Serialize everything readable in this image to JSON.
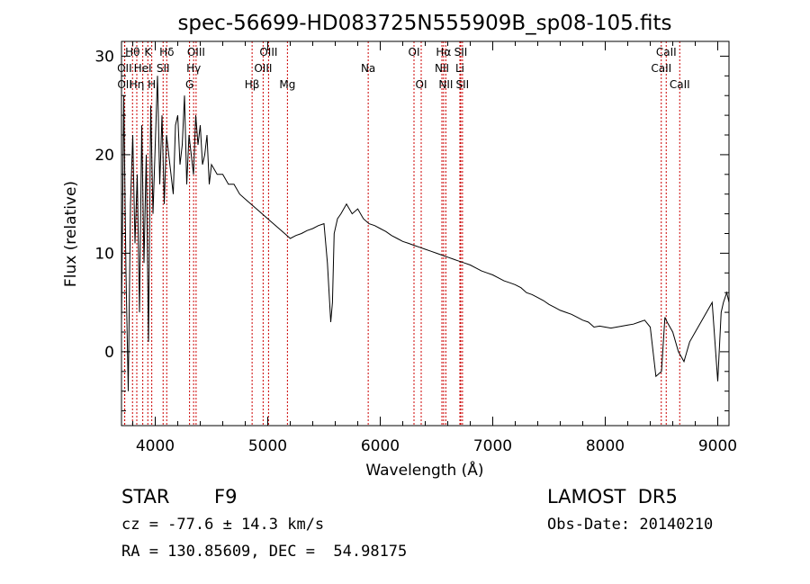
{
  "chart_data": {
    "type": "line",
    "title": "spec-56699-HD083725N555909B_sp08-105.fits",
    "xlabel": "Wavelength (Å)",
    "ylabel": "Flux (relative)",
    "xlim": [
      3700,
      9100
    ],
    "ylim": [
      -7.5,
      31.5
    ],
    "xticks": [
      4000,
      5000,
      6000,
      7000,
      8000,
      9000
    ],
    "yticks": [
      0,
      10,
      20,
      30
    ],
    "grid": false,
    "series": [
      {
        "x": [
          3700,
          3720,
          3740,
          3760,
          3780,
          3800,
          3820,
          3840,
          3860,
          3880,
          3900,
          3920,
          3940,
          3960,
          3980,
          4000,
          4020,
          4040,
          4060,
          4080,
          4100,
          4120,
          4140,
          4160,
          4180,
          4200,
          4220,
          4240,
          4260,
          4280,
          4300,
          4320,
          4340,
          4360,
          4380,
          4400,
          4420,
          4440,
          4460,
          4480,
          4500,
          4550,
          4600,
          4650,
          4700,
          4750,
          4800,
          4850,
          4900,
          4950,
          5000,
          5050,
          5100,
          5150,
          5200,
          5250,
          5300,
          5350,
          5400,
          5450,
          5500,
          5530,
          5560,
          5575,
          5590,
          5620,
          5650,
          5700,
          5750,
          5800,
          5850,
          5900,
          5950,
          6000,
          6050,
          6100,
          6150,
          6200,
          6250,
          6300,
          6350,
          6400,
          6450,
          6500,
          6550,
          6600,
          6650,
          6700,
          6750,
          6800,
          6850,
          6900,
          6950,
          7000,
          7050,
          7100,
          7150,
          7200,
          7250,
          7300,
          7350,
          7400,
          7450,
          7500,
          7550,
          7600,
          7650,
          7700,
          7750,
          7800,
          7850,
          7900,
          7950,
          8000,
          8050,
          8100,
          8150,
          8200,
          8250,
          8300,
          8350,
          8400,
          8450,
          8500,
          8530,
          8550,
          8600,
          8650,
          8700,
          8750,
          8800,
          8850,
          8900,
          8950,
          9000,
          9030,
          9050,
          9080,
          9100
        ],
        "values": [
          3,
          26,
          8,
          -4,
          15,
          22,
          11,
          18,
          4,
          23,
          9,
          20,
          1,
          25,
          14,
          21,
          28,
          17,
          24,
          15,
          22,
          20,
          18,
          16,
          23,
          24,
          19,
          21,
          26,
          17,
          22,
          20,
          18,
          24,
          21,
          23,
          19,
          20,
          22,
          17,
          19,
          18,
          18,
          17,
          17,
          16,
          15.5,
          15,
          14.5,
          14,
          13.5,
          13,
          12.5,
          12,
          11.5,
          11.8,
          12,
          12.3,
          12.5,
          12.8,
          13,
          9,
          3,
          5,
          12,
          13.5,
          14,
          15,
          14,
          14.5,
          13.5,
          13,
          12.8,
          12.5,
          12.2,
          11.8,
          11.5,
          11.2,
          11,
          10.8,
          10.6,
          10.4,
          10.2,
          10,
          9.8,
          9.6,
          9.4,
          9.2,
          9,
          8.8,
          8.5,
          8.2,
          8,
          7.8,
          7.5,
          7.2,
          7,
          6.8,
          6.5,
          6,
          5.8,
          5.5,
          5.2,
          4.8,
          4.5,
          4.2,
          4,
          3.8,
          3.5,
          3.2,
          3,
          2.5,
          2.6,
          2.5,
          2.4,
          2.5,
          2.6,
          2.7,
          2.8,
          3,
          3.2,
          2.5,
          -2.5,
          -2,
          3.5,
          3,
          2,
          0,
          -1,
          1,
          2,
          3,
          4,
          5,
          -3,
          4,
          5,
          6,
          5
        ]
      }
    ],
    "lines": [
      {
        "label": "Hθ",
        "x": 3798,
        "row": 0
      },
      {
        "label": "OII",
        "x": 3727,
        "row": 1
      },
      {
        "label": "OII",
        "x": 3729,
        "row": 2
      },
      {
        "label": "K",
        "x": 3934,
        "row": 0
      },
      {
        "label": "HeI",
        "x": 3889,
        "row": 1
      },
      {
        "label": "Hη",
        "x": 3836,
        "row": 2
      },
      {
        "label": "Hδ",
        "x": 4102,
        "row": 0
      },
      {
        "label": "SII",
        "x": 4070,
        "row": 1
      },
      {
        "label": "H",
        "x": 3969,
        "row": 2
      },
      {
        "label": "OIII",
        "x": 4363,
        "row": 0
      },
      {
        "label": "Hγ",
        "x": 4341,
        "row": 1
      },
      {
        "label": "G",
        "x": 4305,
        "row": 2
      },
      {
        "label": "OIII",
        "x": 5007,
        "row": 0
      },
      {
        "label": "OIII",
        "x": 4959,
        "row": 1
      },
      {
        "label": "Hβ",
        "x": 4861,
        "row": 2
      },
      {
        "label": "Mg",
        "x": 5175,
        "row": 2
      },
      {
        "label": "Na",
        "x": 5893,
        "row": 1
      },
      {
        "label": "OI",
        "x": 6300,
        "row": 0
      },
      {
        "label": "OI",
        "x": 6364,
        "row": 2
      },
      {
        "label": "Hα",
        "x": 6563,
        "row": 0
      },
      {
        "label": "NII",
        "x": 6548,
        "row": 1
      },
      {
        "label": "NII",
        "x": 6583,
        "row": 2
      },
      {
        "label": "SII",
        "x": 6716,
        "row": 0
      },
      {
        "label": "Li",
        "x": 6708,
        "row": 1
      },
      {
        "label": "SII",
        "x": 6731,
        "row": 2
      },
      {
        "label": "CaII",
        "x": 8542,
        "row": 0
      },
      {
        "label": "CaII",
        "x": 8498,
        "row": 1
      },
      {
        "label": "CaII",
        "x": 8662,
        "row": 2
      }
    ]
  },
  "info": {
    "object_type": "STAR",
    "subclass": "F9",
    "survey": "LAMOST  DR5",
    "cz": "cz = -77.6 ± 14.3 km/s",
    "obs_date": "Obs-Date: 20140210",
    "coords": "RA = 130.85609, DEC =  54.98175"
  },
  "colors": {
    "line_marker": "#cc0000",
    "spectrum": "#000000"
  }
}
